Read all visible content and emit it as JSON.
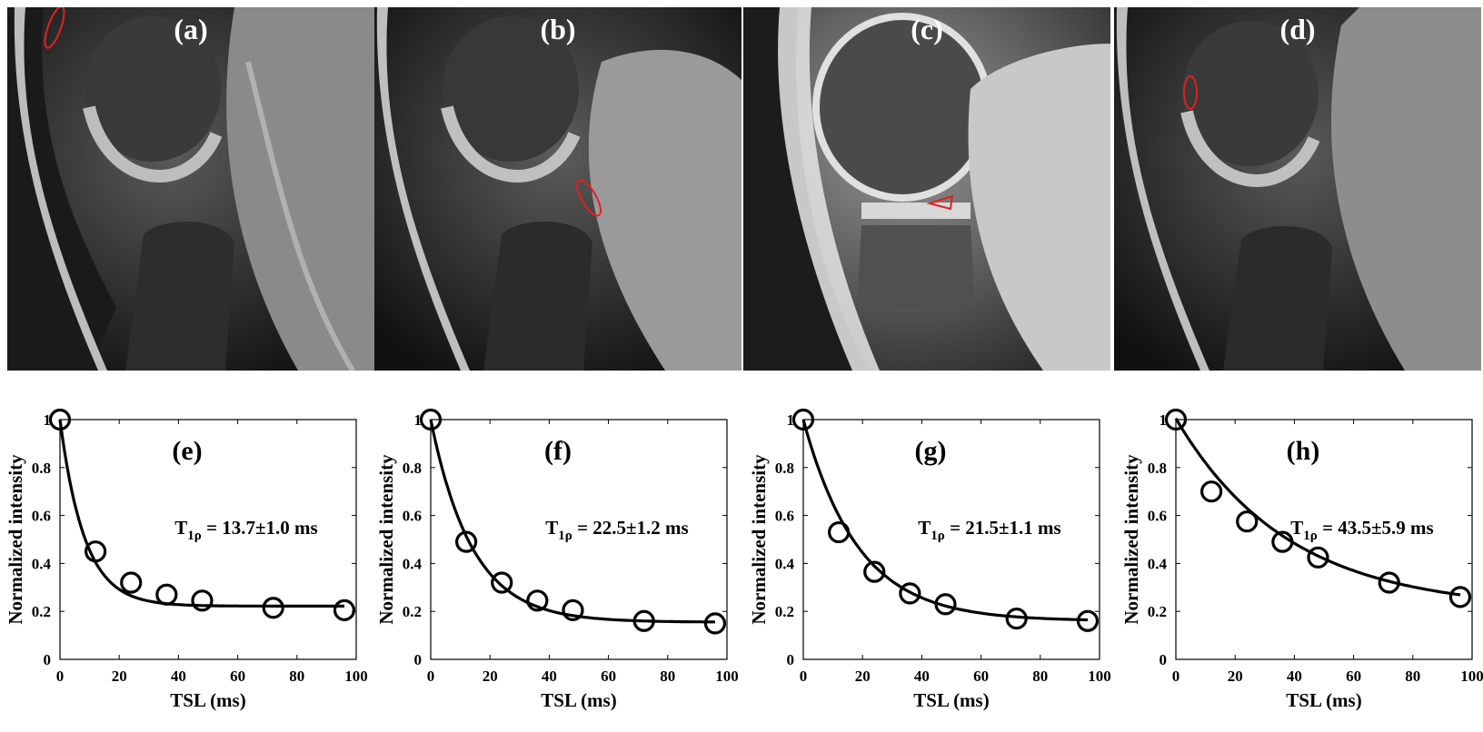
{
  "images": [
    {
      "label": "(a)",
      "roi": "ellipse"
    },
    {
      "label": "(b)",
      "roi": "ellipse"
    },
    {
      "label": "(c)",
      "roi": "triangle"
    },
    {
      "label": "(d)",
      "roi": "ellipse"
    }
  ],
  "colors": {
    "roi": "#e02020",
    "curve": "#000000",
    "background": "#ffffff"
  },
  "chart_data": [
    {
      "type": "scatter",
      "panel": "(e)",
      "annotation": {
        "base": "T",
        "sub": "1ρ",
        "text": " = 13.7±1.0 ms"
      },
      "xlabel": "TSL (ms)",
      "ylabel": "Normalized intensity",
      "xlim": [
        0,
        100
      ],
      "ylim": [
        0,
        1
      ],
      "xticks": [
        0,
        20,
        40,
        60,
        80,
        100
      ],
      "yticks": [
        0,
        0.2,
        0.4,
        0.6,
        0.8,
        1
      ],
      "x": [
        0,
        12,
        24,
        36,
        48,
        72,
        96
      ],
      "y": [
        1.0,
        0.45,
        0.32,
        0.27,
        0.245,
        0.215,
        0.205
      ],
      "fit": {
        "model": "exponential",
        "a": 0.778,
        "tau": 8.3,
        "b": 0.222
      }
    },
    {
      "type": "scatter",
      "panel": "(f)",
      "annotation": {
        "base": "T",
        "sub": "1ρ",
        "text": " = 22.5±1.2 ms"
      },
      "xlabel": "TSL (ms)",
      "ylabel": "Normalized intensity",
      "xlim": [
        0,
        100
      ],
      "ylim": [
        0,
        1
      ],
      "xticks": [
        0,
        20,
        40,
        60,
        80,
        100
      ],
      "yticks": [
        0,
        0.2,
        0.4,
        0.6,
        0.8,
        1
      ],
      "x": [
        0,
        12,
        24,
        36,
        48,
        72,
        96
      ],
      "y": [
        1.0,
        0.49,
        0.32,
        0.245,
        0.205,
        0.16,
        0.15
      ],
      "fit": {
        "model": "exponential",
        "a": 0.845,
        "tau": 14.0,
        "b": 0.155
      }
    },
    {
      "type": "scatter",
      "panel": "(g)",
      "annotation": {
        "base": "T",
        "sub": "1ρ",
        "text": " = 21.5±1.1 ms"
      },
      "xlabel": "TSL (ms)",
      "ylabel": "Normalized intensity",
      "xlim": [
        0,
        100
      ],
      "ylim": [
        0,
        1
      ],
      "xticks": [
        0,
        20,
        40,
        60,
        80,
        100
      ],
      "yticks": [
        0,
        0.2,
        0.4,
        0.6,
        0.8,
        1
      ],
      "x": [
        0,
        12,
        24,
        36,
        48,
        72,
        96
      ],
      "y": [
        1.0,
        0.53,
        0.365,
        0.275,
        0.23,
        0.17,
        0.16
      ],
      "fit": {
        "model": "exponential",
        "a": 0.84,
        "tau": 18.5,
        "b": 0.16
      }
    },
    {
      "type": "scatter",
      "panel": "(h)",
      "annotation": {
        "base": "T",
        "sub": "1ρ",
        "text": " = 43.5±5.9 ms"
      },
      "xlabel": "TSL (ms)",
      "ylabel": "Normalized intensity",
      "xlim": [
        0,
        100
      ],
      "ylim": [
        0,
        1
      ],
      "xticks": [
        0,
        20,
        40,
        60,
        80,
        100
      ],
      "yticks": [
        0,
        0.2,
        0.4,
        0.6,
        0.8,
        1
      ],
      "x": [
        0,
        12,
        24,
        36,
        48,
        72,
        96
      ],
      "y": [
        1.0,
        0.7,
        0.575,
        0.49,
        0.425,
        0.32,
        0.26
      ],
      "fit": {
        "model": "exponential",
        "a": 0.8,
        "tau": 38.0,
        "b": 0.205
      }
    }
  ]
}
